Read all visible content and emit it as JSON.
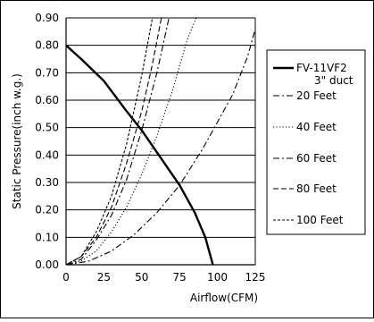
{
  "chart_data": {
    "type": "line",
    "xlabel": "Airflow(CFM)",
    "ylabel": "Static Pressure(inch w.g.)",
    "xlim": [
      0,
      125
    ],
    "ylim": [
      0,
      0.9
    ],
    "x_ticks": [
      "0",
      "25",
      "50",
      "75",
      "100",
      "125"
    ],
    "y_ticks": [
      "0.00",
      "0.10",
      "0.20",
      "0.30",
      "0.40",
      "0.50",
      "0.60",
      "0.70",
      "0.80",
      "0.90"
    ],
    "grid": "horizontal",
    "legend_position": "right",
    "series": [
      {
        "name": "FV-11VF2",
        "name_line2": "3\" duct",
        "style": "solid",
        "x": [
          0,
          10,
          25,
          40,
          50,
          60,
          75,
          85,
          92,
          97
        ],
        "y": [
          0.8,
          0.75,
          0.67,
          0.56,
          0.49,
          0.41,
          0.29,
          0.19,
          0.1,
          0.0
        ]
      },
      {
        "name": "20 Feet",
        "style": "dashdot",
        "x": [
          0,
          15,
          30,
          45,
          60,
          75,
          90,
          100,
          110,
          120,
          125
        ],
        "y": [
          0.0,
          0.013,
          0.05,
          0.11,
          0.19,
          0.29,
          0.42,
          0.52,
          0.62,
          0.76,
          0.86
        ]
      },
      {
        "name": "40 Feet",
        "style": "dotted",
        "x": [
          0,
          10,
          20,
          30,
          40,
          50,
          60,
          70,
          80,
          86
        ],
        "y": [
          0.0,
          0.014,
          0.05,
          0.12,
          0.21,
          0.33,
          0.47,
          0.63,
          0.82,
          0.9
        ]
      },
      {
        "name": "60 Feet",
        "style": "dashdot",
        "x": [
          0,
          10,
          20,
          30,
          40,
          50,
          60,
          68
        ],
        "y": [
          0.0,
          0.02,
          0.09,
          0.18,
          0.31,
          0.49,
          0.7,
          0.9
        ]
      },
      {
        "name": "80 Feet",
        "style": "dashed",
        "x": [
          0,
          10,
          20,
          30,
          40,
          50,
          57,
          63
        ],
        "y": [
          0.0,
          0.03,
          0.1,
          0.21,
          0.37,
          0.56,
          0.73,
          0.9
        ]
      },
      {
        "name": "100 Feet",
        "style": "shortdash",
        "x": [
          0,
          10,
          20,
          30,
          40,
          50,
          57
        ],
        "y": [
          0.0,
          0.03,
          0.12,
          0.25,
          0.44,
          0.69,
          0.9
        ]
      }
    ]
  }
}
